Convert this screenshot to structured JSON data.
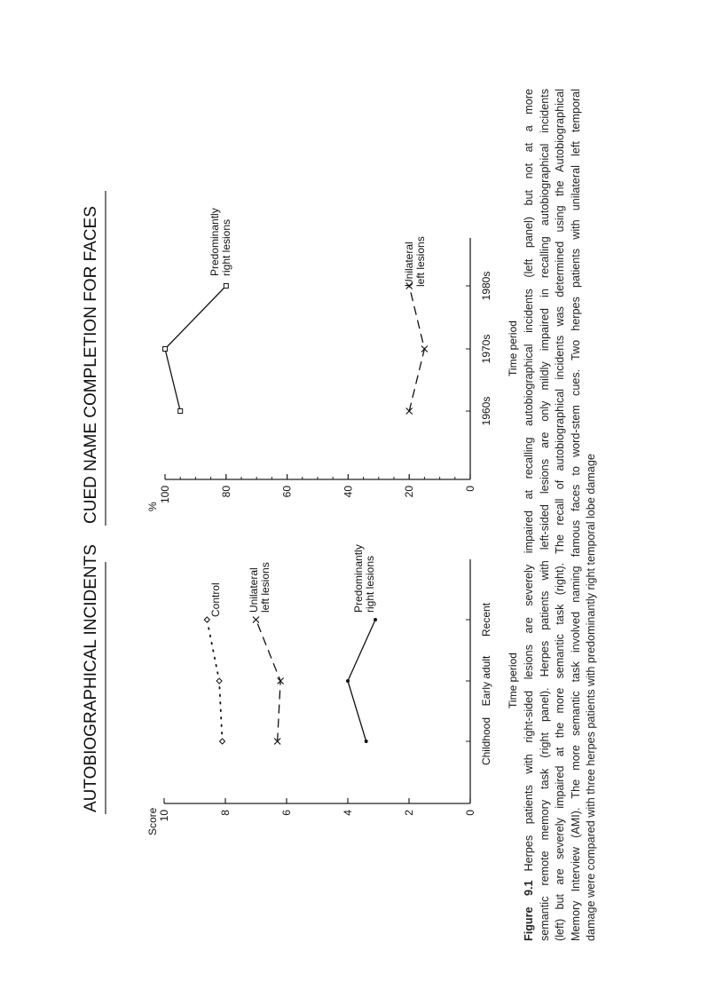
{
  "caption": {
    "figure_label": "Figure 9.1",
    "lines": [
      "Herpes patients with right-sided lesions are severely impaired at recalling autobiographical incidents (left panel) but not at a more",
      "semantic remote memory task (right panel). Herpes patients with left-sided lesions are only mildly impaired in recalling autobiographical incidents",
      "(left) but are severely impaired at the more semantic task (right). The recall of autobiographical incidents was determined using the Autobiographical",
      "Memory Interview (AMI). The more semantic task involved naming famous faces to word-stem cues. Two herpes patients with unilateral left temporal",
      "damage were compared with three herpes patients with predominantly right temporal lobe damage"
    ]
  },
  "chart_data": [
    {
      "type": "line",
      "title": "AUTOBIOGRAPHICAL INCIDENTS",
      "ylabel": "Score",
      "xlabel": "Time period",
      "categories": [
        "Childhood",
        "Early adult",
        "Recent"
      ],
      "ylim": [
        0,
        10
      ],
      "yticks": [
        0,
        2,
        4,
        6,
        8,
        10
      ],
      "grid": false,
      "series": [
        {
          "name": "Control",
          "label_lines": [
            "Control"
          ],
          "values": [
            8.1,
            8.2,
            8.6
          ],
          "line": "dotted",
          "marker": "diamond"
        },
        {
          "name": "Unilateral left lesions",
          "label_lines": [
            "Unilateral",
            "left lesions"
          ],
          "values": [
            6.3,
            6.2,
            7.0
          ],
          "line": "dashed",
          "marker": "x"
        },
        {
          "name": "Predominantly right lesions",
          "label_lines": [
            "Predominantly",
            "right lesions"
          ],
          "values": [
            3.4,
            4.0,
            3.1
          ],
          "line": "solid",
          "marker": "dot"
        }
      ]
    },
    {
      "type": "line",
      "title": "CUED NAME COMPLETION FOR FACES",
      "ylabel": "%",
      "xlabel": "Time period",
      "categories": [
        "1960s",
        "1970s",
        "1980s"
      ],
      "ylim": [
        0,
        100
      ],
      "yticks": [
        0,
        20,
        40,
        60,
        80,
        100
      ],
      "grid": false,
      "series": [
        {
          "name": "Predominantly right lesions",
          "label_lines": [
            "Predominantly",
            "right lesions"
          ],
          "values": [
            95,
            100,
            80
          ],
          "line": "solid",
          "marker": "square"
        },
        {
          "name": "Unilateral left lesions",
          "label_lines": [
            "Unilateral",
            "left lesions"
          ],
          "values": [
            20,
            15,
            20
          ],
          "line": "dashed",
          "marker": "x"
        }
      ]
    }
  ]
}
